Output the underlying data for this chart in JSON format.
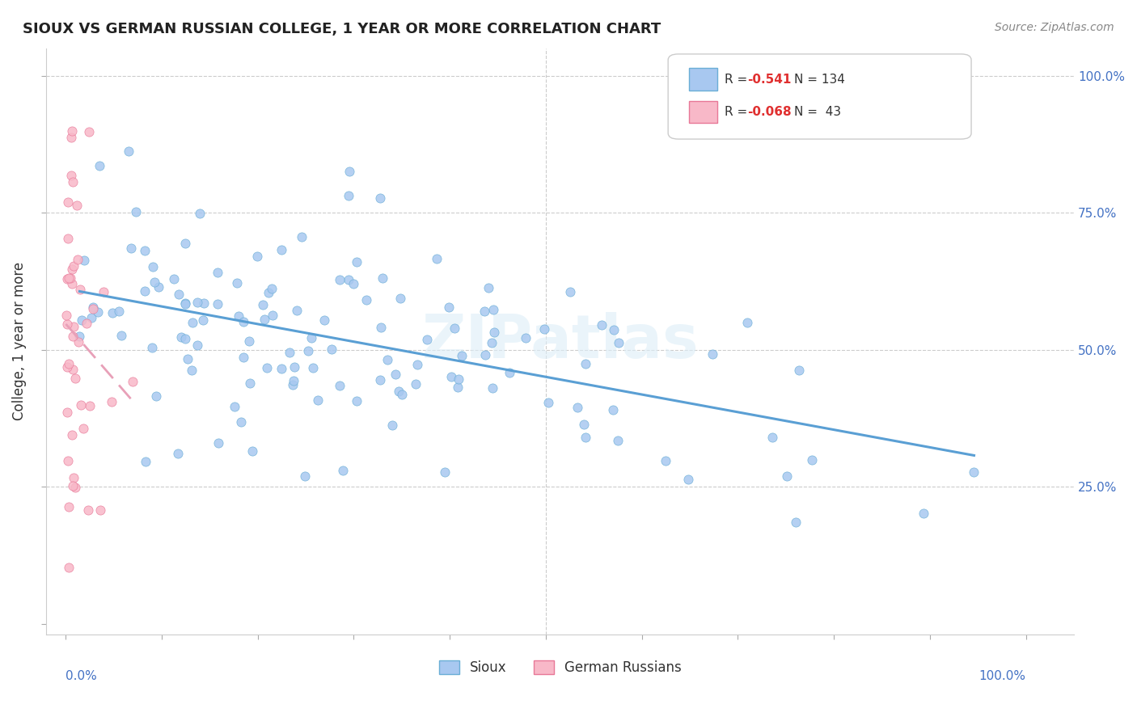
{
  "title": "SIOUX VS GERMAN RUSSIAN COLLEGE, 1 YEAR OR MORE CORRELATION CHART",
  "source_text": "Source: ZipAtlas.com",
  "ylabel": "College, 1 year or more",
  "xmin": 0.0,
  "xmax": 1.0,
  "ymin": 0.0,
  "ymax": 1.0,
  "sioux_color": "#a8c8f0",
  "sioux_edge": "#6aaed6",
  "german_color": "#f8b8c8",
  "german_edge": "#e87898",
  "trend_sioux_color": "#5a9fd4",
  "trend_german_color": "#e8a0b8",
  "legend_v1": "-0.541",
  "legend_n1": "N = 134",
  "legend_v2": "-0.068",
  "legend_n2": "N =  43"
}
